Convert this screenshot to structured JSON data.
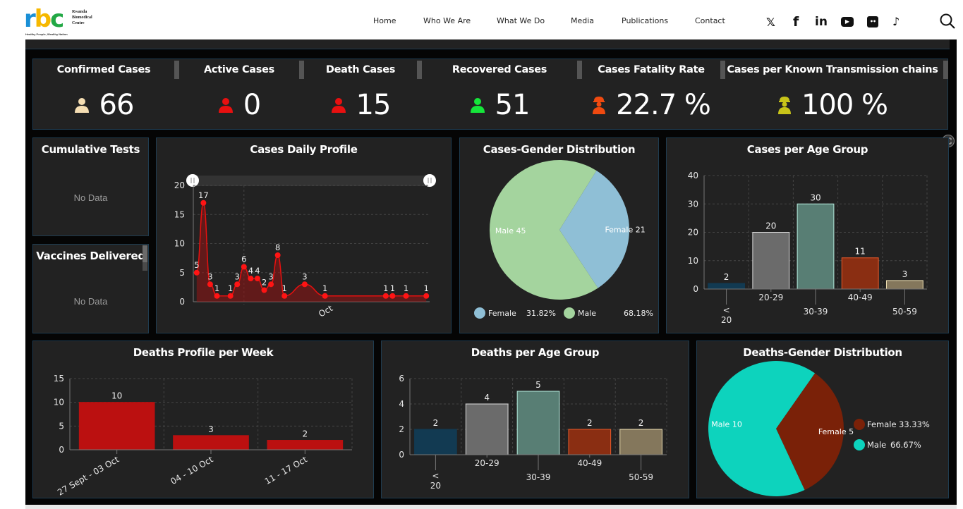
{
  "header": {
    "logo": {
      "letters": [
        "r",
        "b",
        "c"
      ],
      "org_name_lines": [
        "Rwanda",
        "Biomedical",
        "Centre"
      ],
      "tagline": "Healthy People, Wealthy Nation"
    },
    "nav": [
      "Home",
      "Who We Are",
      "What We Do",
      "Media",
      "Publications",
      "Contact"
    ],
    "social": [
      {
        "icon": "x-icon",
        "glyph": "𝕏"
      },
      {
        "icon": "facebook-icon",
        "glyph": "f"
      },
      {
        "icon": "linkedin-icon",
        "glyph": "in"
      },
      {
        "icon": "youtube-icon",
        "glyph": "▶"
      },
      {
        "icon": "flickr-icon",
        "glyph": "••"
      },
      {
        "icon": "tiktok-icon",
        "glyph": "♪"
      }
    ],
    "search_icon": "search-icon"
  },
  "kpis": [
    {
      "title": "Confirmed Cases",
      "value": "66",
      "icon_color": "#f5deb3"
    },
    {
      "title": "Active Cases",
      "value": "0",
      "icon_color": "#e81010"
    },
    {
      "title": "Death Cases",
      "value": "15",
      "icon_color": "#e81010"
    },
    {
      "title": "Recovered Cases",
      "value": "51",
      "icon_color": "#15e63a"
    },
    {
      "title": "Cases Fatality Rate",
      "value": "22.7 %",
      "icon_color": "#f04a10"
    },
    {
      "title": "Cases per Known Transmission chains",
      "value": "100 %",
      "icon_color": "#c8c419"
    }
  ],
  "cumulative_tests": {
    "title": "Cumulative Tests",
    "empty": "No Data"
  },
  "vaccines_delivered": {
    "title": "Vaccines Delivered",
    "empty": "No Data"
  },
  "chart_data": [
    {
      "id": "cases-daily",
      "type": "area",
      "title": "Cases Daily Profile",
      "xlabel": "",
      "ylabel": "",
      "ylim": [
        0,
        20
      ],
      "yticks": [
        "0",
        "5",
        "10",
        "15",
        "20"
      ],
      "xtick_label": "Oct",
      "xtick_day": 7,
      "x_domain": [
        -0.5,
        34.5
      ],
      "x": [
        0,
        1,
        2,
        3,
        5,
        6,
        7,
        8,
        9,
        10,
        11,
        12,
        13,
        16,
        19,
        28,
        29,
        31,
        34
      ],
      "values": [
        5,
        17,
        3,
        1,
        1,
        3,
        6,
        4,
        4,
        2,
        3,
        8,
        1,
        3,
        1,
        1,
        1,
        1,
        1
      ],
      "color": "#e8100f",
      "grid": true
    },
    {
      "id": "cases-gender",
      "type": "pie",
      "title": "Cases-Gender Distribution",
      "slices": [
        {
          "name": "Female",
          "value": 21,
          "label": "Female 21",
          "percent": "31.82%",
          "color": "#8fbfd6"
        },
        {
          "name": "Male",
          "value": 45,
          "label": "Male 45",
          "percent": "68.18%",
          "color": "#a4d49e"
        }
      ],
      "legend": "bottom"
    },
    {
      "id": "cases-age",
      "type": "bar",
      "title": "Cases per Age Group",
      "categories": [
        "< 20",
        "20-29",
        "30-39",
        "40-49",
        "50-59"
      ],
      "values": [
        2,
        20,
        30,
        11,
        3
      ],
      "ylim": [
        0,
        40
      ],
      "yticks": [
        "0",
        "10",
        "20",
        "30",
        "40"
      ],
      "colors": [
        "#123a52",
        "#6b6b6b",
        "#587e74",
        "#8a2e12",
        "#84775c"
      ],
      "borders": [
        "#123a52",
        "#dcdcdc",
        "#b8eee0",
        "#e85a2a",
        "#f0e2b6"
      ],
      "grid": true
    },
    {
      "id": "deaths-week",
      "type": "bar",
      "title": "Deaths Profile per Week",
      "categories": [
        "27 Sept - 03 Oct",
        "04 - 10 Oct",
        "11 - 17 Oct"
      ],
      "values": [
        10,
        3,
        2
      ],
      "ylim": [
        0,
        15
      ],
      "yticks": [
        "0",
        "5",
        "10",
        "15"
      ],
      "colors": [
        "#bb1010",
        "#bb1010",
        "#bb1010"
      ],
      "borders": [
        "#bb1010",
        "#bb1010",
        "#bb1010"
      ],
      "grid": true
    },
    {
      "id": "deaths-age",
      "type": "bar",
      "title": "Deaths per Age Group",
      "categories": [
        "< 20",
        "20-29",
        "30-39",
        "40-49",
        "50-59"
      ],
      "values": [
        2,
        4,
        5,
        2,
        2
      ],
      "ylim": [
        0,
        6
      ],
      "yticks": [
        "0",
        "2",
        "4",
        "6"
      ],
      "colors": [
        "#123a52",
        "#6b6b6b",
        "#587e74",
        "#8a2e12",
        "#84775c"
      ],
      "borders": [
        "#123a52",
        "#dcdcdc",
        "#b8eee0",
        "#e85a2a",
        "#f0e2b6"
      ],
      "grid": true
    },
    {
      "id": "deaths-gender",
      "type": "pie",
      "title": "Deaths-Gender Distribution",
      "slices": [
        {
          "name": "Female",
          "value": 5,
          "label": "Female 5",
          "percent": "33.33%",
          "color": "#7a2108"
        },
        {
          "name": "Male",
          "value": 10,
          "label": "Male 10",
          "percent": "66.67%",
          "color": "#0dd3bd"
        }
      ],
      "legend": "right"
    }
  ]
}
